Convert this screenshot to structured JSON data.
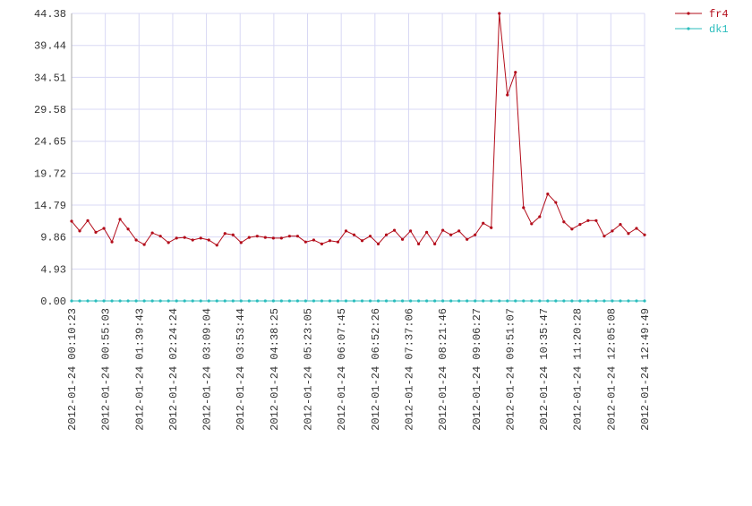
{
  "chart_data": {
    "type": "line",
    "x": [
      "2012-01-24 00:10:23",
      "2012-01-24 00:21:05",
      "2012-01-24 00:31:47",
      "2012-01-24 00:42:28",
      "2012-01-24 00:53:10",
      "2012-01-24 01:03:52",
      "2012-01-24 01:14:34",
      "2012-01-24 01:25:15",
      "2012-01-24 01:35:57",
      "2012-01-24 01:46:39",
      "2012-01-24 01:57:21",
      "2012-01-24 02:08:02",
      "2012-01-24 02:18:44",
      "2012-01-24 02:29:26",
      "2012-01-24 02:40:08",
      "2012-01-24 02:50:50",
      "2012-01-24 03:01:31",
      "2012-01-24 03:12:13",
      "2012-01-24 03:22:55",
      "2012-01-24 03:33:37",
      "2012-01-24 03:44:18",
      "2012-01-24 03:55:00",
      "2012-01-24 04:05:42",
      "2012-01-24 04:16:24",
      "2012-01-24 04:27:05",
      "2012-01-24 04:37:47",
      "2012-01-24 04:48:29",
      "2012-01-24 04:59:11",
      "2012-01-24 05:09:53",
      "2012-01-24 05:20:34",
      "2012-01-24 05:31:16",
      "2012-01-24 05:41:58",
      "2012-01-24 05:52:40",
      "2012-01-24 06:03:21",
      "2012-01-24 06:14:03",
      "2012-01-24 06:24:45",
      "2012-01-24 06:35:27",
      "2012-01-24 06:46:08",
      "2012-01-24 06:56:50",
      "2012-01-24 07:07:32",
      "2012-01-24 07:18:14",
      "2012-01-24 07:28:56",
      "2012-01-24 07:39:37",
      "2012-01-24 07:50:19",
      "2012-01-24 08:01:01",
      "2012-01-24 08:11:43",
      "2012-01-24 08:22:24",
      "2012-01-24 08:33:06",
      "2012-01-24 08:43:48",
      "2012-01-24 08:54:30",
      "2012-01-24 09:05:12",
      "2012-01-24 09:15:53",
      "2012-01-24 09:26:35",
      "2012-01-24 09:37:17",
      "2012-01-24 09:47:59",
      "2012-01-24 09:58:40",
      "2012-01-24 10:09:22",
      "2012-01-24 10:20:04",
      "2012-01-24 10:30:46",
      "2012-01-24 10:41:27",
      "2012-01-24 10:52:09",
      "2012-01-24 11:02:51",
      "2012-01-24 11:13:33",
      "2012-01-24 11:24:15",
      "2012-01-24 11:34:56",
      "2012-01-24 11:45:38",
      "2012-01-24 11:56:20",
      "2012-01-24 12:07:02",
      "2012-01-24 12:17:43",
      "2012-01-24 12:28:25",
      "2012-01-24 12:39:07",
      "2012-01-24 12:49:49"
    ],
    "series": [
      {
        "name": "fr4",
        "color": "#b30c1a",
        "values": [
          12.3,
          10.8,
          12.4,
          10.6,
          11.2,
          9.1,
          12.6,
          11.1,
          9.4,
          8.7,
          10.5,
          10.0,
          9.0,
          9.7,
          9.8,
          9.4,
          9.7,
          9.4,
          8.6,
          10.4,
          10.2,
          9.0,
          9.8,
          10.0,
          9.8,
          9.7,
          9.7,
          10.0,
          10.0,
          9.1,
          9.4,
          8.8,
          9.3,
          9.1,
          10.8,
          10.2,
          9.3,
          10.0,
          8.8,
          10.2,
          10.9,
          9.5,
          10.8,
          8.8,
          10.6,
          8.8,
          10.9,
          10.2,
          10.8,
          9.5,
          10.2,
          12.0,
          11.3,
          44.38,
          31.8,
          35.3,
          14.4,
          11.9,
          13.0,
          16.5,
          15.2,
          12.2,
          11.1,
          11.8,
          12.4,
          12.4,
          10.0,
          10.8,
          11.8,
          10.4,
          11.2,
          10.2
        ]
      },
      {
        "name": "dk1",
        "color": "#2bbdbd",
        "values": [
          0,
          0,
          0,
          0,
          0,
          0,
          0,
          0,
          0,
          0,
          0,
          0,
          0,
          0,
          0,
          0,
          0,
          0,
          0,
          0,
          0,
          0,
          0,
          0,
          0,
          0,
          0,
          0,
          0,
          0,
          0,
          0,
          0,
          0,
          0,
          0,
          0,
          0,
          0,
          0,
          0,
          0,
          0,
          0,
          0,
          0,
          0,
          0,
          0,
          0,
          0,
          0,
          0,
          0,
          0,
          0,
          0,
          0,
          0,
          0,
          0,
          0,
          0,
          0,
          0,
          0,
          0,
          0,
          0,
          0,
          0,
          0
        ]
      }
    ],
    "xlim": [
      "2012-01-24 00:10:23",
      "2012-01-24 12:49:49"
    ],
    "xticks": [
      "2012-01-24 00:10:23",
      "2012-01-24 00:55:03",
      "2012-01-24 01:39:43",
      "2012-01-24 02:24:24",
      "2012-01-24 03:09:04",
      "2012-01-24 03:53:44",
      "2012-01-24 04:38:25",
      "2012-01-24 05:23:05",
      "2012-01-24 06:07:45",
      "2012-01-24 06:52:26",
      "2012-01-24 07:37:06",
      "2012-01-24 08:21:46",
      "2012-01-24 09:06:27",
      "2012-01-24 09:51:07",
      "2012-01-24 10:35:47",
      "2012-01-24 11:20:28",
      "2012-01-24 12:05:08",
      "2012-01-24 12:49:49"
    ],
    "ylim": [
      0,
      44.38
    ],
    "yticks": [
      {
        "value": 0,
        "label": "0.00"
      },
      4.93,
      9.86,
      14.79,
      19.72,
      24.65,
      29.58,
      34.51,
      39.44,
      44.38
    ],
    "grid": true,
    "legend": "top-right"
  }
}
